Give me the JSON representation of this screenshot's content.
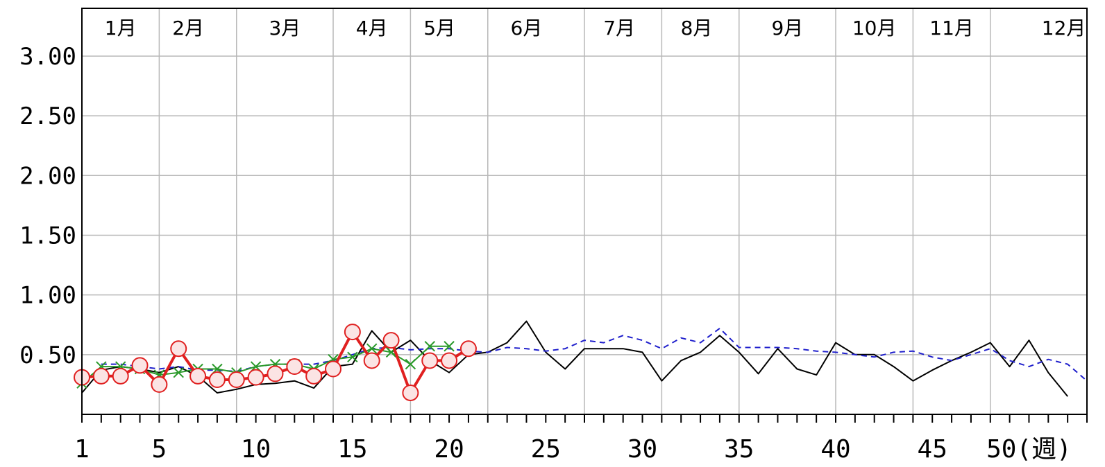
{
  "chart_data": {
    "type": "line",
    "ylim": [
      0,
      3.4
    ],
    "xlim": [
      1,
      53
    ],
    "y_ticks": [
      0.5,
      1.0,
      1.5,
      2.0,
      2.5,
      3.0
    ],
    "y_tick_labels": [
      "0.50",
      "1.00",
      "1.50",
      "2.00",
      "2.50",
      "3.00"
    ],
    "x_tick_labels": [
      {
        "week": 1,
        "label": "1"
      },
      {
        "week": 5,
        "label": "5"
      },
      {
        "week": 10,
        "label": "10"
      },
      {
        "week": 15,
        "label": "15"
      },
      {
        "week": 20,
        "label": "20"
      },
      {
        "week": 25,
        "label": "25"
      },
      {
        "week": 30,
        "label": "30"
      },
      {
        "week": 35,
        "label": "35"
      },
      {
        "week": 40,
        "label": "40"
      },
      {
        "week": 45,
        "label": "45"
      },
      {
        "week": 50,
        "label": "50(週)"
      }
    ],
    "month_boundaries": [
      5,
      9,
      14,
      18,
      22,
      27,
      31,
      35,
      40,
      44,
      48
    ],
    "month_labels": [
      {
        "label": "1月",
        "week": 3
      },
      {
        "label": "2月",
        "week": 6.5
      },
      {
        "label": "3月",
        "week": 11.5
      },
      {
        "label": "4月",
        "week": 16
      },
      {
        "label": "5月",
        "week": 19.5
      },
      {
        "label": "6月",
        "week": 24
      },
      {
        "label": "7月",
        "week": 28.8
      },
      {
        "label": "8月",
        "week": 32.8
      },
      {
        "label": "9月",
        "week": 37.5
      },
      {
        "label": "10月",
        "week": 42
      },
      {
        "label": "11月",
        "week": 46
      },
      {
        "label": "12月",
        "week": 51.8
      }
    ],
    "grid": true,
    "series": [
      {
        "color": "#000000",
        "style": "solid",
        "marker": "none",
        "x": [
          1,
          2,
          3,
          4,
          5,
          6,
          7,
          8,
          9,
          10,
          11,
          12,
          13,
          14,
          15,
          16,
          17,
          18,
          19,
          20,
          21,
          22,
          23,
          24,
          25,
          26,
          27,
          28,
          29,
          30,
          31,
          32,
          33,
          34,
          35,
          36,
          37,
          38,
          39,
          40,
          41,
          42,
          43,
          44,
          45,
          46,
          47,
          48,
          49,
          50,
          51,
          52
        ],
        "values": [
          0.18,
          0.37,
          0.4,
          0.38,
          0.35,
          0.4,
          0.32,
          0.18,
          0.21,
          0.25,
          0.26,
          0.28,
          0.22,
          0.4,
          0.42,
          0.7,
          0.52,
          0.62,
          0.45,
          0.35,
          0.5,
          0.52,
          0.6,
          0.78,
          0.52,
          0.38,
          0.55,
          0.55,
          0.55,
          0.52,
          0.28,
          0.45,
          0.52,
          0.66,
          0.52,
          0.34,
          0.55,
          0.38,
          0.33,
          0.6,
          0.5,
          0.5,
          0.4,
          0.28,
          0.37,
          0.45,
          0.52,
          0.6,
          0.4,
          0.62,
          0.35,
          0.15
        ]
      },
      {
        "color": "#1f1fcc",
        "style": "dashed",
        "marker": "none",
        "x": [
          2,
          3,
          4,
          5,
          6,
          7,
          8,
          9,
          10,
          11,
          12,
          13,
          14,
          15,
          16,
          17,
          18,
          19,
          20,
          21,
          22,
          23,
          24,
          25,
          26,
          27,
          28,
          29,
          30,
          31,
          32,
          33,
          34,
          35,
          36,
          37,
          38,
          39,
          40,
          41,
          42,
          43,
          44,
          45,
          46,
          47,
          48,
          49,
          50,
          51,
          52,
          53
        ],
        "values": [
          0.42,
          0.42,
          0.4,
          0.38,
          0.4,
          0.37,
          0.37,
          0.36,
          0.4,
          0.42,
          0.42,
          0.42,
          0.45,
          0.5,
          0.55,
          0.56,
          0.54,
          0.55,
          0.55,
          0.53,
          0.52,
          0.56,
          0.55,
          0.53,
          0.55,
          0.62,
          0.6,
          0.66,
          0.62,
          0.55,
          0.64,
          0.6,
          0.72,
          0.56,
          0.56,
          0.56,
          0.55,
          0.53,
          0.52,
          0.5,
          0.48,
          0.52,
          0.53,
          0.48,
          0.45,
          0.5,
          0.55,
          0.45,
          0.4,
          0.46,
          0.42,
          0.28
        ]
      },
      {
        "color": "#2a9a2a",
        "style": "solid",
        "marker": "x",
        "x": [
          1,
          2,
          3,
          4,
          5,
          6,
          7,
          8,
          9,
          10,
          11,
          12,
          13,
          14,
          15,
          16,
          17,
          18,
          19,
          20
        ],
        "values": [
          0.26,
          0.4,
          0.4,
          0.38,
          0.33,
          0.35,
          0.38,
          0.38,
          0.35,
          0.4,
          0.42,
          0.42,
          0.38,
          0.46,
          0.48,
          0.55,
          0.52,
          0.42,
          0.57,
          0.57
        ]
      },
      {
        "color": "#e02020",
        "style": "solid",
        "marker": "circle",
        "x": [
          1,
          2,
          3,
          4,
          5,
          6,
          7,
          8,
          9,
          10,
          11,
          12,
          13,
          14,
          15,
          16,
          17,
          18,
          19,
          20,
          21
        ],
        "values": [
          0.31,
          0.32,
          0.32,
          0.41,
          0.25,
          0.55,
          0.32,
          0.29,
          0.29,
          0.31,
          0.34,
          0.4,
          0.32,
          0.38,
          0.69,
          0.45,
          0.62,
          0.18,
          0.45,
          0.45,
          0.55
        ]
      }
    ]
  }
}
